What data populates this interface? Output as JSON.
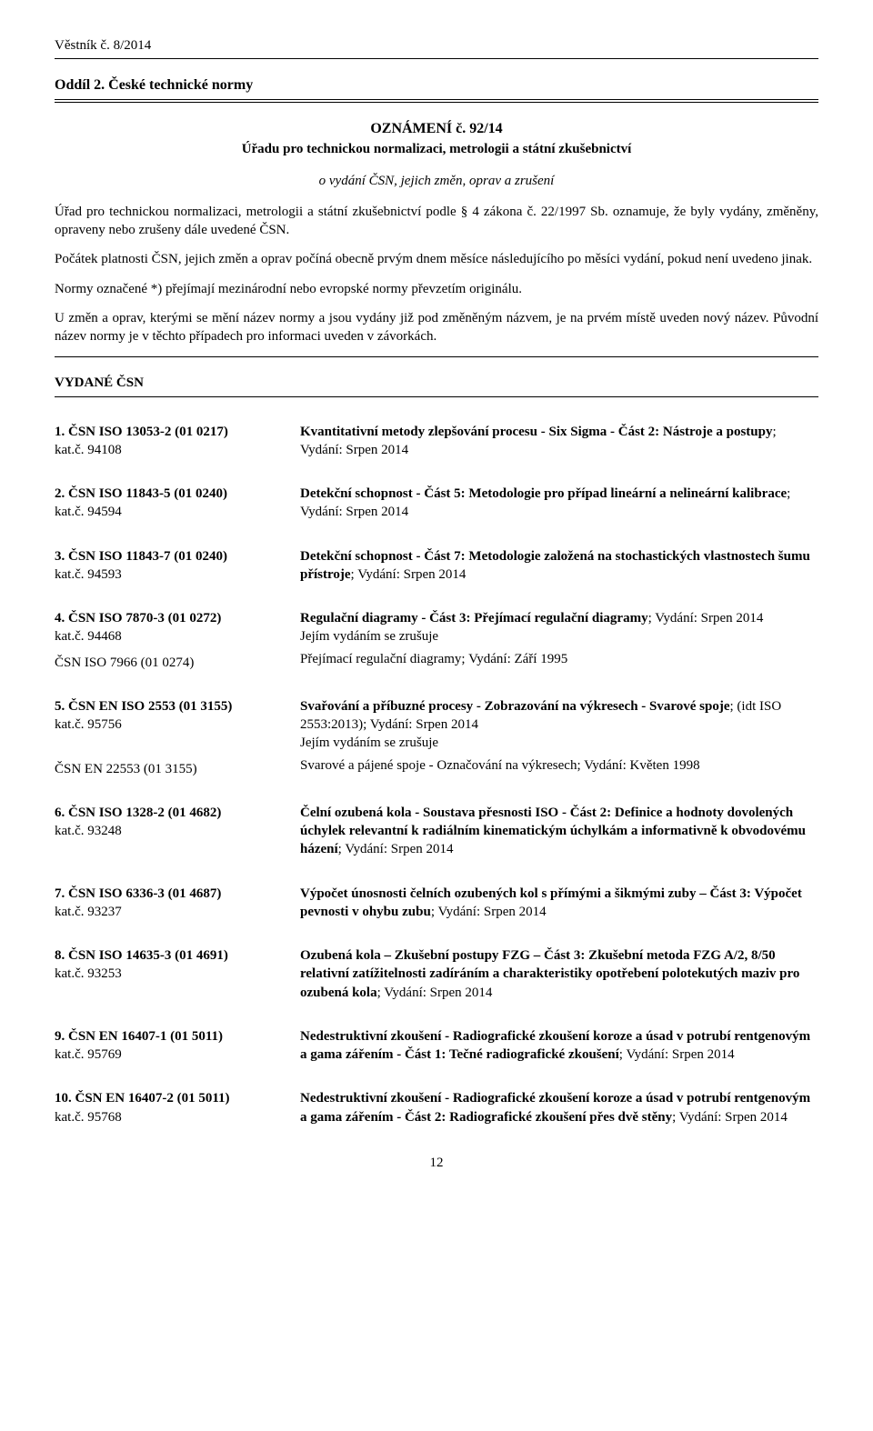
{
  "header_id": "Věstník č. 8/2014",
  "section_title": "Oddíl 2. České technické normy",
  "announce": "OZNÁMENÍ č. 92/14",
  "announce_sub": "Úřadu pro technickou normalizaci, metrologii a státní zkušebnictví",
  "announce_em": "o vydání ČSN, jejich změn, oprav a zrušení",
  "intro_paragraphs": [
    "Úřad pro technickou normalizaci, metrologii a státní zkušebnictví podle § 4 zákona č. 22/1997 Sb. oznamuje, že byly vydány, změněny, opraveny nebo zrušeny dále uvedené ČSN.",
    "Počátek platnosti ČSN, jejich změn a oprav počíná obecně prvým dnem měsíce následujícího po měsíci vydání, pokud není uvedeno jinak.",
    "Normy označené *) přejímají mezinárodní nebo evropské normy převzetím originálu.",
    "U změn a oprav, kterými se mění název normy a jsou vydány již pod změněným názvem, je na prvém místě uveden nový název. Původní název normy je v těchto případech pro informaci uveden v závorkách."
  ],
  "vydane_label": "VYDANÉ ČSN",
  "entries": [
    {
      "num": "1.",
      "code": "ČSN ISO 13053-2 (01 0217)",
      "kat": "kat.č. 94108",
      "title": "Kvantitativní metody zlepšování procesu - Six Sigma - Část 2: Nástroje a postupy",
      "edition": "; Vydání: Srpen 2014"
    },
    {
      "num": "2.",
      "code": "ČSN ISO 11843-5 (01 0240)",
      "kat": "kat.č. 94594",
      "title": "Detekční schopnost - Část 5: Metodologie pro případ lineární a nelineární kalibrace",
      "edition": "; Vydání: Srpen 2014"
    },
    {
      "num": "3.",
      "code": "ČSN ISO 11843-7 (01 0240)",
      "kat": "kat.č. 94593",
      "title": "Detekční schopnost - Část 7: Metodologie založená na stochastických vlastnostech šumu přístroje",
      "edition": "; Vydání: Srpen 2014"
    },
    {
      "num": "4.",
      "code": "ČSN ISO 7870-3 (01 0272)",
      "kat": "kat.č. 94468",
      "title": "Regulační diagramy - Část 3: Přejímací regulační diagramy",
      "edition": "; Vydání: Srpen 2014",
      "note": "Jejím vydáním se zrušuje",
      "cancel_code": "ČSN ISO 7966 (01 0274)",
      "cancel_text": "Přejímací regulační diagramy; Vydání: Září 1995"
    },
    {
      "num": "5.",
      "code": "ČSN EN ISO 2553 (01 3155)",
      "kat": "kat.č. 95756",
      "title": "Svařování a příbuzné procesy - Zobrazování na výkresech - Svarové spoje",
      "edition": "; (idt ISO 2553:2013); Vydání: Srpen 2014",
      "note": "Jejím vydáním se zrušuje",
      "cancel_code": "ČSN EN 22553 (01 3155)",
      "cancel_text": "Svarové a pájené spoje - Označování na výkresech; Vydání: Květen 1998"
    },
    {
      "num": "6.",
      "code": "ČSN ISO 1328-2 (01 4682)",
      "kat": "kat.č. 93248",
      "title": "Čelní ozubená kola - Soustava přesnosti ISO - Část 2: Definice a hodnoty dovolených úchylek relevantní k radiálním kinematickým úchylkám a informativně k obvodovému házení",
      "edition": "; Vydání: Srpen 2014"
    },
    {
      "num": "7.",
      "code": "ČSN ISO 6336-3 (01 4687)",
      "kat": "kat.č. 93237",
      "title": "Výpočet únosnosti čelních ozubených kol s přímými a šikmými zuby – Část 3: Výpočet pevnosti v ohybu zubu",
      "edition": "; Vydání: Srpen 2014"
    },
    {
      "num": "8.",
      "code": "ČSN ISO 14635-3 (01 4691)",
      "kat": "kat.č. 93253",
      "title": "Ozubená kola – Zkušební postupy FZG – Část 3: Zkušební metoda FZG A/2, 8/50 relativní zatížitelnosti zadíráním a charakteristiky opotřebení polotekutých maziv pro ozubená kola",
      "edition": "; Vydání: Srpen 2014"
    },
    {
      "num": "9.",
      "code": "ČSN EN 16407-1 (01 5011)",
      "kat": "kat.č. 95769",
      "title": "Nedestruktivní zkoušení - Radiografické zkoušení koroze a úsad v potrubí rentgenovým a gama zářením - Část 1: Tečné radiografické zkoušení",
      "edition": "; Vydání: Srpen 2014"
    },
    {
      "num": "10.",
      "code": "ČSN EN 16407-2 (01 5011)",
      "kat": "kat.č. 95768",
      "title": "Nedestruktivní zkoušení - Radiografické zkoušení koroze a úsad v potrubí rentgenovým a gama zářením - Část 2: Radiografické zkoušení přes dvě stěny",
      "edition": "; Vydání: Srpen 2014"
    }
  ],
  "page_number": "12"
}
